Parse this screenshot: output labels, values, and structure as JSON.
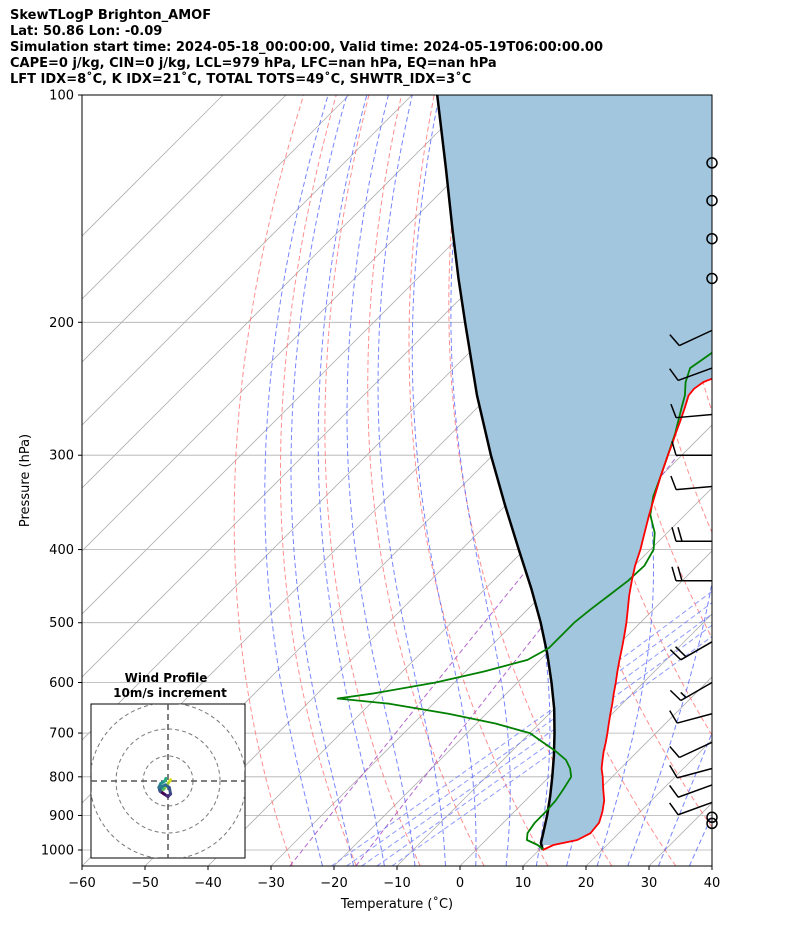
{
  "title_lines": [
    "SkewTLogP Brighton_AMOF",
    "Lat: 50.86   Lon: -0.09",
    "Simulation start time: 2024-05-18_00:00:00, Valid time: 2024-05-19T06:00:00.00",
    "CAPE=0 j/kg, CIN=0 j/kg, LCL=979 hPa, LFC=nan hPa, EQ=nan hPa",
    "LFT IDX=8˚C, K IDX=21˚C, TOTAL TOTS=49˚C, SHWTR_IDX=3˚C"
  ],
  "chart_data": {
    "type": "line",
    "subtype": "skew-t log-p",
    "xlabel": "Temperature (˚C)",
    "ylabel": "Pressure (hPa)",
    "xlim": [
      -60,
      40
    ],
    "ylim": [
      1050,
      100
    ],
    "y_scale": "log",
    "x_ticks": [
      -60,
      -50,
      -40,
      -30,
      -20,
      -10,
      0,
      10,
      20,
      30,
      40
    ],
    "x_tick_labels": [
      "−60",
      "−50",
      "−40",
      "−30",
      "−20",
      "−10",
      "0",
      "10",
      "20",
      "30",
      "40"
    ],
    "y_ticks": [
      1000,
      900,
      800,
      700,
      600,
      500,
      400,
      300,
      200,
      100
    ],
    "grid": true,
    "colors": {
      "temperature": "#ff0000",
      "dewpoint": "#008000",
      "parcel": "#000000",
      "shade": "#a3c6df",
      "dry_adiabat": "#ff6a6a",
      "moist_adiabat": "#4a5cff",
      "mixing_ratio": "#6a7aff",
      "extra": "#a040c0"
    },
    "series": [
      {
        "key": "temperature",
        "p": [
          1000,
          985,
          970,
          950,
          920,
          890,
          860,
          830,
          800,
          780,
          760,
          740,
          720,
          700,
          680,
          660,
          640,
          620,
          600,
          580,
          560,
          540,
          520,
          500,
          480,
          460,
          440,
          420,
          400,
          380,
          360,
          340,
          320,
          300,
          290,
          280,
          270,
          260,
          250,
          245,
          240,
          235,
          230,
          225,
          220,
          215,
          210,
          200,
          190,
          180,
          170,
          160,
          150,
          140,
          130,
          120,
          110,
          100
        ],
        "t": [
          10.6,
          11.5,
          14.5,
          15.5,
          15.2,
          14.0,
          12.5,
          10.5,
          8.5,
          7.0,
          5.8,
          4.6,
          3.5,
          2.3,
          1.0,
          -0.3,
          -1.6,
          -3.0,
          -4.4,
          -5.9,
          -7.4,
          -8.9,
          -10.5,
          -12.2,
          -14.1,
          -16.1,
          -18.0,
          -19.9,
          -21.6,
          -23.6,
          -25.7,
          -27.8,
          -30.0,
          -32.2,
          -33.3,
          -34.5,
          -35.7,
          -37.0,
          -38.4,
          -38.6,
          -38.2,
          -36.5,
          -35.5,
          -34.5,
          -33.9,
          -33.4,
          -32.8,
          -31.8,
          -30.6,
          -29.3,
          -27.9,
          -26.2,
          -24.5,
          -22.8,
          -21.0,
          -19.0,
          -17.0,
          -15.0
        ]
      },
      {
        "key": "dewpoint",
        "p": [
          1000,
          985,
          970,
          950,
          920,
          890,
          860,
          830,
          800,
          780,
          760,
          740,
          720,
          700,
          680,
          660,
          640,
          630,
          620,
          600,
          580,
          560,
          540,
          520,
          500,
          480,
          460,
          440,
          420,
          400,
          380,
          360,
          340,
          320,
          300,
          280,
          260,
          250,
          240,
          230,
          220,
          210,
          200,
          190,
          180,
          170,
          160,
          150,
          140,
          130,
          120,
          110,
          100
        ],
        "t": [
          10.8,
          9.0,
          6.5,
          5.5,
          5.0,
          5.0,
          4.8,
          4.2,
          3.5,
          2.0,
          0.0,
          -3.0,
          -6.5,
          -10.0,
          -17.0,
          -26.0,
          -37.0,
          -46.0,
          -41.0,
          -33.0,
          -27.0,
          -22.0,
          -20.5,
          -20.5,
          -20.5,
          -20.0,
          -19.3,
          -18.6,
          -18.4,
          -19.5,
          -22.0,
          -25.5,
          -28.0,
          -30.0,
          -32.2,
          -34.6,
          -37.5,
          -39.0,
          -41.0,
          -42.5,
          -41.5,
          -41.5,
          -42.5,
          -45.0,
          -49.0,
          -52.5,
          -53.0,
          -53.0,
          -52.0,
          -51.0,
          -49.5,
          -48.5,
          -47.5
        ]
      },
      {
        "key": "parcel",
        "p": [
          1000,
          979,
          950,
          900,
          850,
          800,
          750,
          700,
          650,
          600,
          550,
          500,
          450,
          400,
          350,
          300,
          250,
          200,
          175,
          150,
          125,
          100
        ],
        "t": [
          10.6,
          9.2,
          8.0,
          5.8,
          3.3,
          0.5,
          -2.6,
          -6.1,
          -10.0,
          -14.6,
          -19.8,
          -25.8,
          -32.8,
          -40.9,
          -50.0,
          -60.3,
          -72.0,
          -85.5,
          -93.5,
          -102.5,
          -113.0,
          -126.0
        ]
      }
    ],
    "wind_barbs": [
      {
        "p": 922,
        "calm": true
      },
      {
        "p": 905,
        "calm": true
      },
      {
        "p": 865,
        "dir": 250,
        "speed": 10
      },
      {
        "p": 820,
        "dir": 250,
        "speed": 10
      },
      {
        "p": 780,
        "dir": 255,
        "speed": 10
      },
      {
        "p": 720,
        "dir": 245,
        "speed": 10
      },
      {
        "p": 660,
        "dir": 255,
        "speed": 10
      },
      {
        "p": 600,
        "dir": 240,
        "speed": 15
      },
      {
        "p": 530,
        "dir": 240,
        "speed": 20
      },
      {
        "p": 440,
        "dir": 270,
        "speed": 20
      },
      {
        "p": 390,
        "dir": 270,
        "speed": 20
      },
      {
        "p": 330,
        "dir": 265,
        "speed": 10
      },
      {
        "p": 300,
        "dir": 270,
        "speed": 10
      },
      {
        "p": 265,
        "dir": 265,
        "speed": 10
      },
      {
        "p": 230,
        "dir": 250,
        "speed": 10
      },
      {
        "p": 205,
        "dir": 245,
        "speed": 10
      },
      {
        "p": 175,
        "calm": true
      },
      {
        "p": 155,
        "calm": true
      },
      {
        "p": 138,
        "calm": true
      },
      {
        "p": 123,
        "calm": true
      }
    ],
    "hodograph": {
      "title": "Wind Profile",
      "subtitle": "10m/s increment",
      "u": [
        1.0,
        0.0,
        -1.5,
        -2.8,
        -3.2,
        -2.0,
        -1.0,
        0.5,
        1.0,
        0.0,
        -1.5,
        -3.0,
        -3.5,
        -2.8,
        -1.2,
        -0.8
      ],
      "v": [
        0.5,
        -1.0,
        -3.0,
        -4.0,
        -3.5,
        -2.0,
        -1.5,
        -2.5,
        -5.0,
        -6.0,
        -5.0,
        -4.0,
        -2.5,
        -1.0,
        0.0,
        1.0
      ]
    }
  }
}
